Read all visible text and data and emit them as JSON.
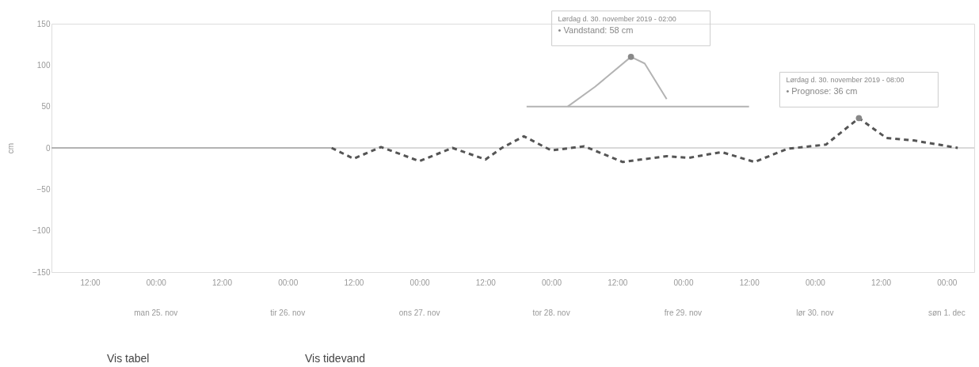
{
  "chart_data": {
    "type": "line",
    "ylabel": "cm",
    "ylim": [
      -150,
      150
    ],
    "yticks": [
      -150,
      -100,
      -50,
      0,
      50,
      100,
      150
    ],
    "xlim": [
      "2019-11-24T05:00",
      "2019-12-01T05:00"
    ],
    "xticks": [
      {
        "value": "2019-11-24T12:00",
        "label": "12:00"
      },
      {
        "value": "2019-11-25T00:00",
        "label": "00:00"
      },
      {
        "value": "2019-11-25T12:00",
        "label": "12:00"
      },
      {
        "value": "2019-11-26T00:00",
        "label": "00:00"
      },
      {
        "value": "2019-11-26T12:00",
        "label": "12:00"
      },
      {
        "value": "2019-11-27T00:00",
        "label": "00:00"
      },
      {
        "value": "2019-11-27T12:00",
        "label": "12:00"
      },
      {
        "value": "2019-11-28T00:00",
        "label": "00:00"
      },
      {
        "value": "2019-11-28T12:00",
        "label": "12:00"
      },
      {
        "value": "2019-11-29T00:00",
        "label": "00:00"
      },
      {
        "value": "2019-11-29T12:00",
        "label": "12:00"
      },
      {
        "value": "2019-11-30T00:00",
        "label": "00:00"
      },
      {
        "value": "2019-11-30T12:00",
        "label": "12:00"
      },
      {
        "value": "2019-12-01T00:00",
        "label": "00:00"
      }
    ],
    "x2ticks": [
      {
        "value": "2019-11-25T00:00",
        "label": "man 25. nov"
      },
      {
        "value": "2019-11-26T00:00",
        "label": "tir 26. nov"
      },
      {
        "value": "2019-11-27T00:00",
        "label": "ons 27. nov"
      },
      {
        "value": "2019-11-28T00:00",
        "label": "tor 28. nov"
      },
      {
        "value": "2019-11-29T00:00",
        "label": "fre 29. nov"
      },
      {
        "value": "2019-11-30T00:00",
        "label": "lør 30. nov"
      },
      {
        "value": "2019-12-01T00:00",
        "label": "søn 1. dec"
      }
    ],
    "x2lim": [
      "2019-11-24T05:00",
      "2019-12-01T05:00"
    ],
    "grid": false,
    "marker": "none",
    "ref_lines": [
      {
        "axis": "y",
        "value": 0,
        "label": null,
        "color": "#cccccc"
      }
    ],
    "series": [
      {
        "color": "#b3b3b3",
        "line_style": "solid",
        "x": [
          "2019-11-24T05:00",
          "2019-11-26T08:00"
        ],
        "values": [
          0,
          0
        ]
      },
      {
        "color": "#b3b3b3",
        "line_style": "solid",
        "x": [
          "2019-11-27T19:30",
          "2019-11-29T12:00"
        ],
        "values": [
          50,
          50
        ]
      },
      {
        "color": "#b3b3b3",
        "line_style": "solid",
        "x": [
          "2019-11-28T03:00",
          "2019-11-28T08:00",
          "2019-11-28T14:30",
          "2019-11-28T17:00",
          "2019-11-28T21:00"
        ],
        "values": [
          50,
          74,
          110,
          102,
          59
        ]
      },
      {
        "color": "#555555",
        "line_style": "dashed",
        "x": [
          "2019-11-26T08:00",
          "2019-11-26T12:00",
          "2019-11-26T17:00",
          "2019-11-27T00:00",
          "2019-11-27T06:00",
          "2019-11-27T12:00",
          "2019-11-27T15:00",
          "2019-11-27T19:00",
          "2019-11-28T00:00",
          "2019-11-28T06:00",
          "2019-11-28T13:00",
          "2019-11-28T21:00",
          "2019-11-29T01:00",
          "2019-11-29T07:00",
          "2019-11-29T13:00",
          "2019-11-29T19:00",
          "2019-11-30T02:00",
          "2019-11-30T08:00",
          "2019-11-30T13:00",
          "2019-11-30T18:00",
          "2019-12-01T02:00"
        ],
        "values": [
          0,
          -13,
          1,
          -16,
          0,
          -14,
          0,
          14,
          -3,
          2,
          -17,
          -10,
          -12,
          -5,
          -17,
          -1,
          4,
          36,
          12,
          9,
          0
        ]
      }
    ],
    "annotations": [
      {
        "text": "Lørdag d. 30. november 2019 - 02:00\n• Vandstand: 58 cm",
        "x": "2019-11-28T14:30",
        "y": 110
      },
      {
        "text": "Lørdag d. 30. november 2019 - 08:00\n• Prognose: 36 cm",
        "x": "2019-11-30T08:00",
        "y": 36
      },
      "Vis tabel",
      "Vis tidevand"
    ]
  }
}
